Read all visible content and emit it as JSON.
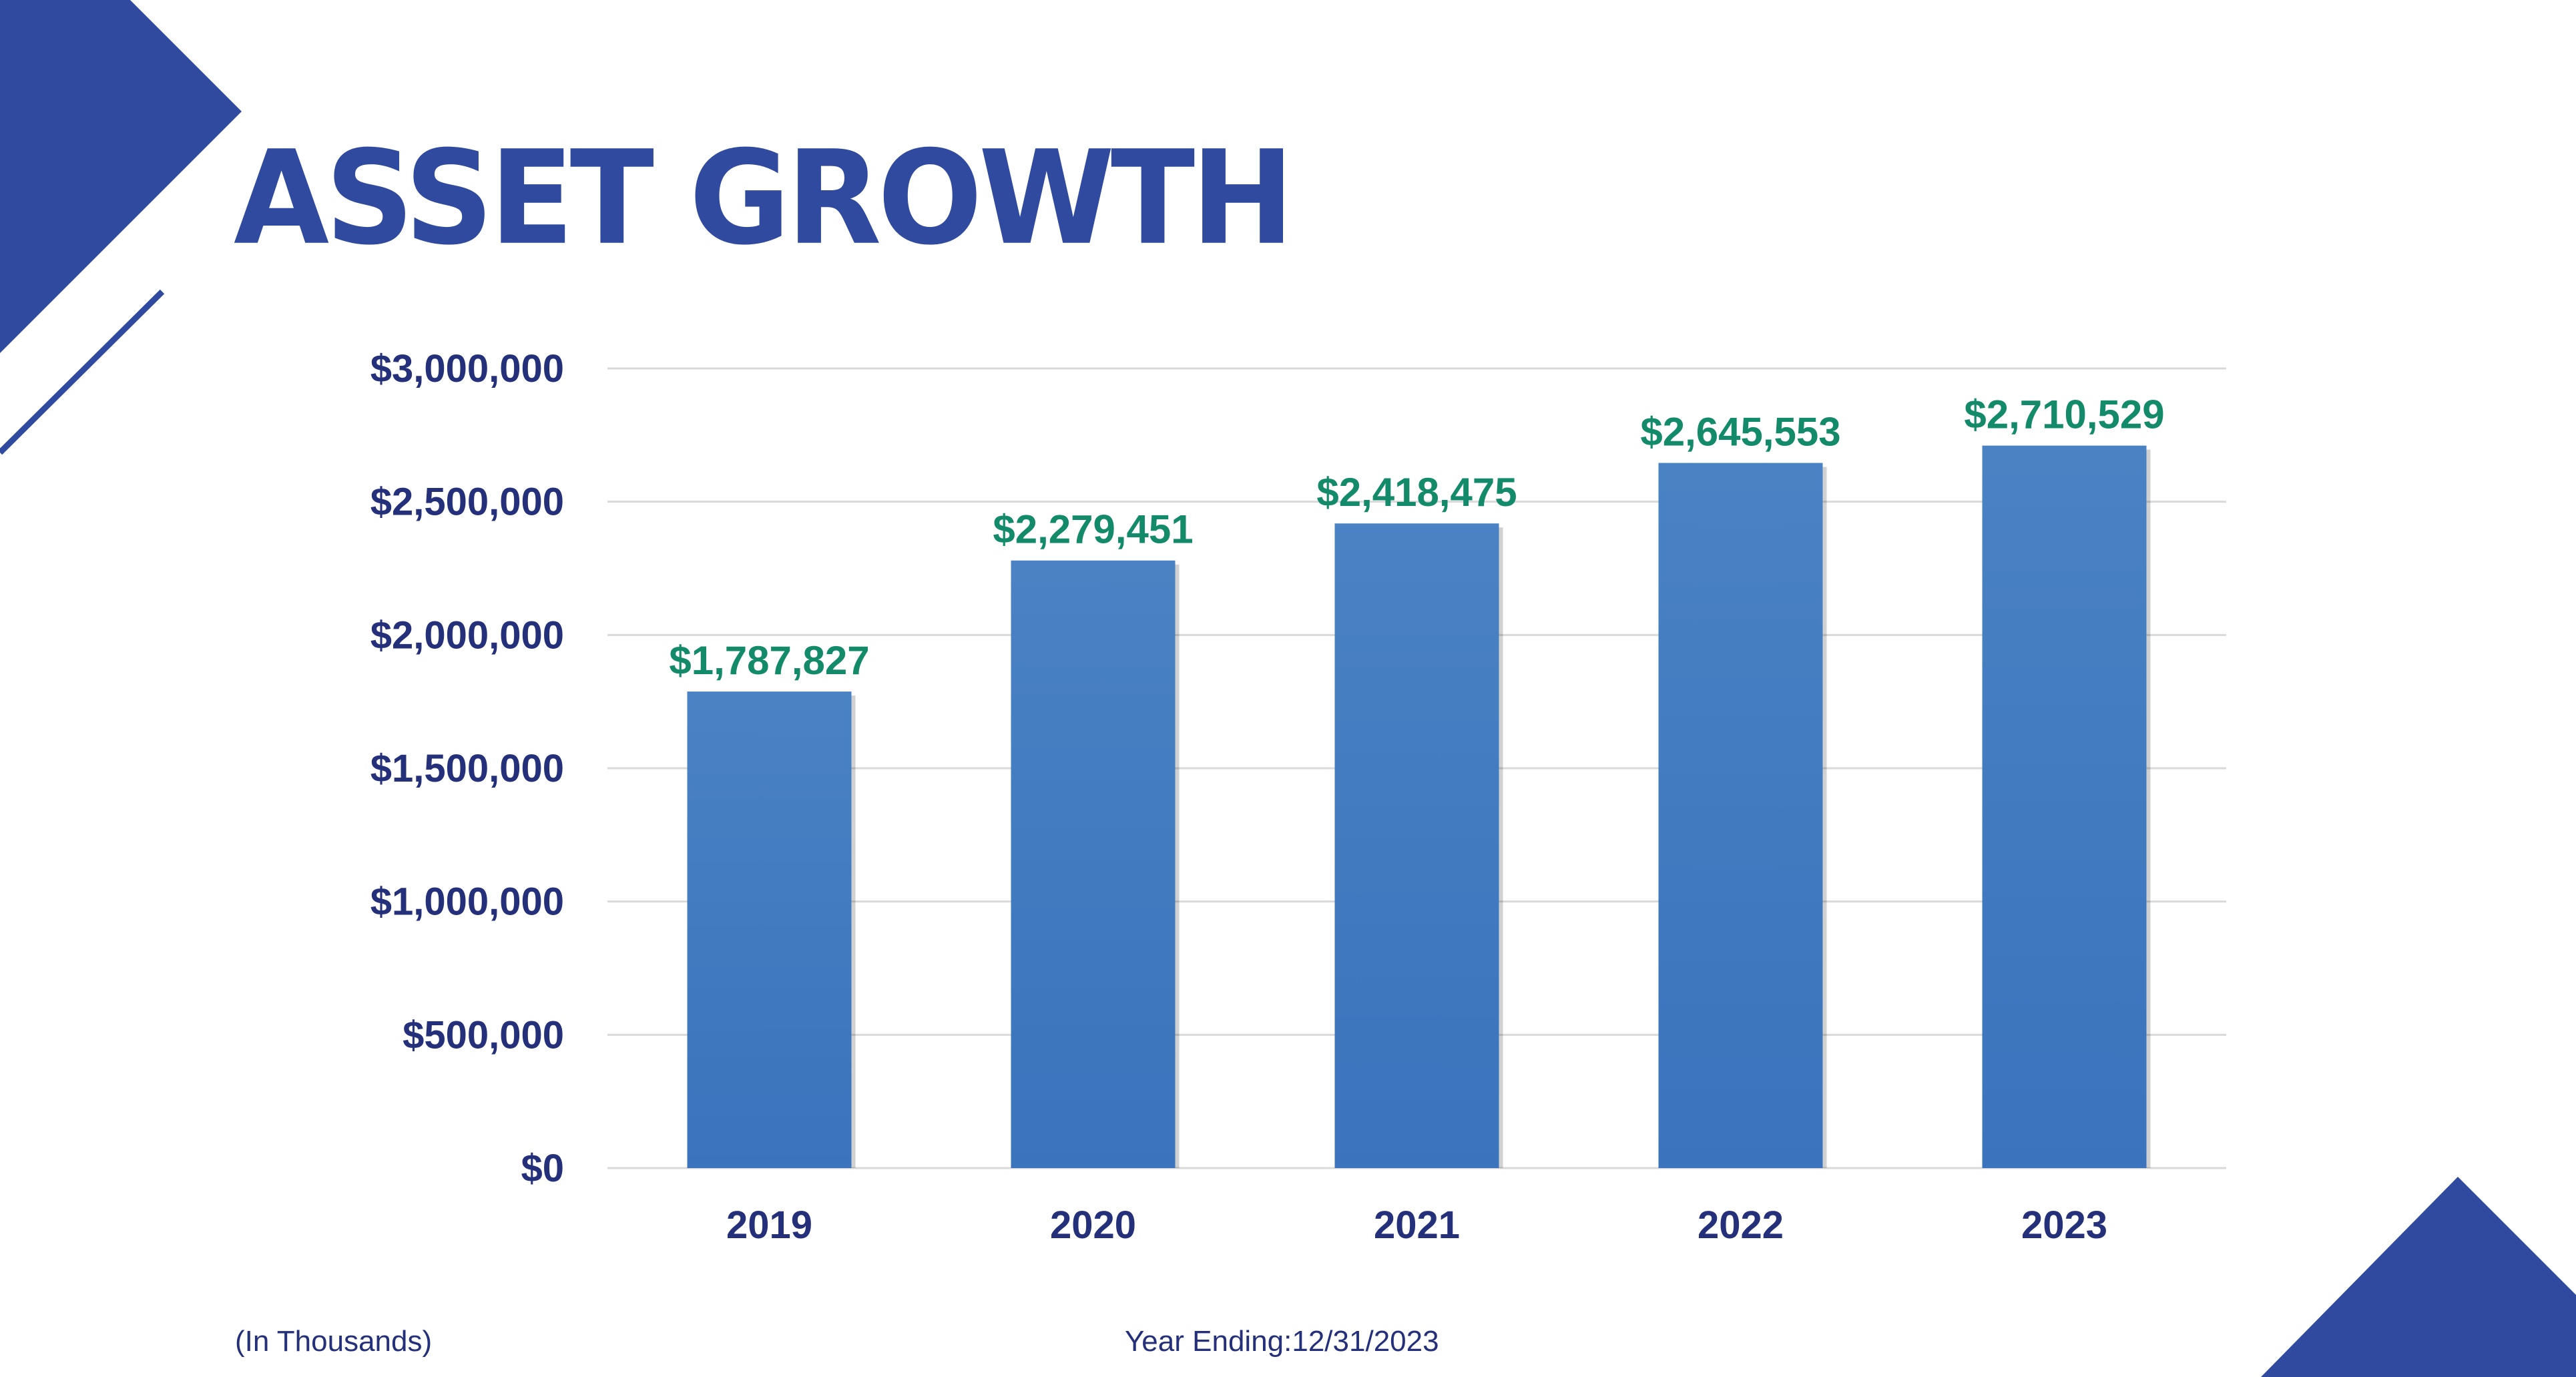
{
  "slide": {
    "title": "ASSET GROWTH",
    "note_left": "(In Thousands)",
    "note_center": "Year Ending:12/31/2023"
  },
  "colors": {
    "brand": "#2f4a9e",
    "axis_text": "#25307a",
    "data_label": "#138a6a",
    "bar_top": "#4a82c4",
    "bar_bottom": "#3b73bd",
    "grid": "#d9d9d9"
  },
  "chart_data": {
    "type": "bar",
    "title": "",
    "xlabel": "",
    "ylabel": "",
    "categories": [
      "2019",
      "2020",
      "2021",
      "2022",
      "2023"
    ],
    "values": [
      1787827,
      2279451,
      2418475,
      2645553,
      2710529
    ],
    "data_labels": [
      "$1,787,827",
      "$2,279,451",
      "$2,418,475",
      "$2,645,553",
      "$2,710,529"
    ],
    "ylim": [
      0,
      3000000
    ],
    "yticks": [
      0,
      500000,
      1000000,
      1500000,
      2000000,
      2500000,
      3000000
    ],
    "ytick_labels": [
      "$0",
      "$500,000",
      "$1,000,000",
      "$1,500,000",
      "$2,000,000",
      "$2,500,000",
      "$3,000,000"
    ],
    "grid": true,
    "legend": "none"
  }
}
